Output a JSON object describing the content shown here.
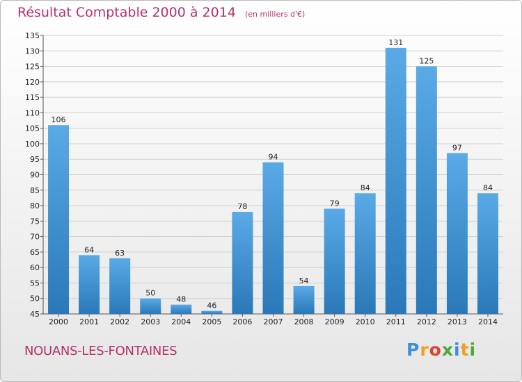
{
  "header": {
    "title": "Résultat Comptable 2000 à 2014",
    "subtitle": "(en milliers d'€)"
  },
  "footer": {
    "commune": "NOUANS-LES-FONTAINES",
    "logo": [
      "P",
      "r",
      "o",
      "x",
      "i",
      "t",
      "i"
    ],
    "logo_colors": [
      "#3a8fd8",
      "#f0a020",
      "#e04030",
      "#4aa83a",
      "#3a8fd8",
      "#f0a020",
      "#4aa83a"
    ]
  },
  "colors": {
    "accent": "#b5316a",
    "bar_top": "#5aaae6",
    "bar_bottom": "#2a78b8",
    "grid": "#cfcfcf"
  },
  "chart_data": {
    "type": "bar",
    "title": "Résultat Comptable 2000 à 2014",
    "categories": [
      "2000",
      "2001",
      "2002",
      "2003",
      "2004",
      "2005",
      "2006",
      "2007",
      "2008",
      "2009",
      "2010",
      "2011",
      "2012",
      "2013",
      "2014"
    ],
    "values": [
      106,
      64,
      63,
      50,
      48,
      46,
      78,
      94,
      54,
      79,
      84,
      131,
      125,
      97,
      84
    ],
    "ylim": [
      45,
      135
    ],
    "yticks": [
      45,
      50,
      55,
      60,
      65,
      70,
      75,
      80,
      85,
      90,
      95,
      100,
      105,
      110,
      115,
      120,
      125,
      130,
      135
    ],
    "grid": true,
    "xlabel": "",
    "ylabel": ""
  }
}
